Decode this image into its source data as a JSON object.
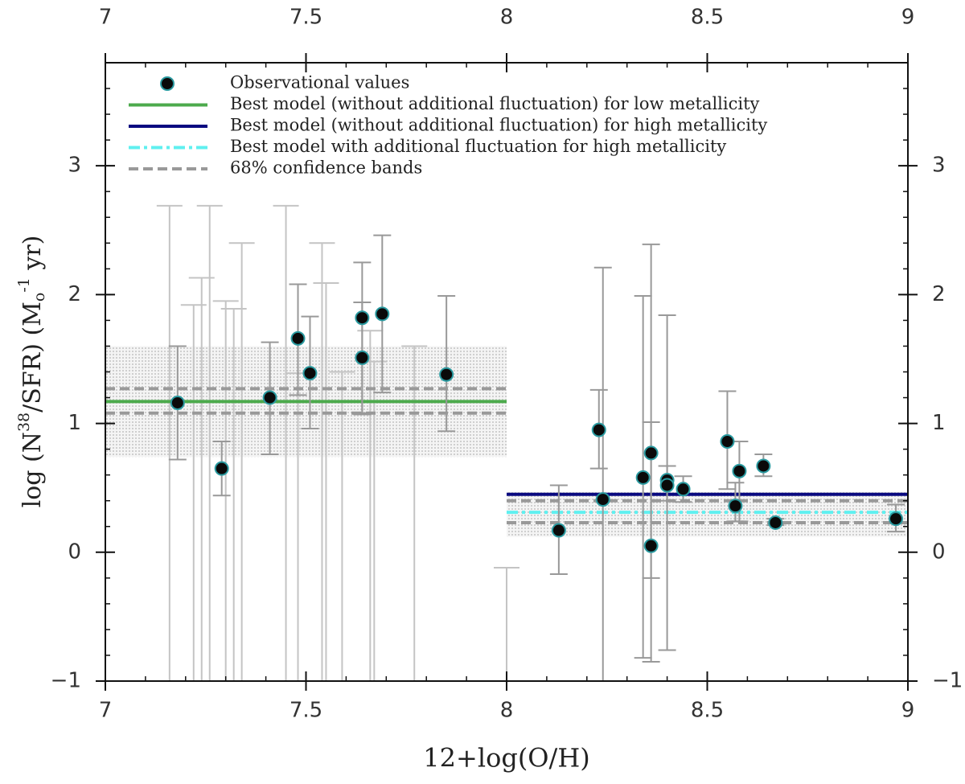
{
  "chart_data": {
    "type": "scatter",
    "x_label": "12+log(O/H)",
    "y_label": [
      "log (N",
      "38",
      "/SFR) (M",
      "o",
      "-1",
      " yr)"
    ],
    "xlim": [
      7,
      9
    ],
    "ylim": [
      -1,
      3.8
    ],
    "xticks": [
      7,
      7.5,
      8,
      8.5,
      9
    ],
    "yticks": [
      {
        "value": -1,
        "label": "−1"
      },
      0,
      1,
      2,
      3
    ],
    "series": [
      {
        "name": "Observational values",
        "color": "#0a0a0a",
        "edge_color": "#2a9aa0",
        "error_color": "#999999",
        "x": [
          7.18,
          7.29,
          7.41,
          7.48,
          7.51,
          7.64,
          7.64,
          7.69,
          7.85,
          8.13,
          8.23,
          8.24,
          8.34,
          8.36,
          8.36,
          8.4,
          8.4,
          8.44,
          8.55,
          8.57,
          8.58,
          8.64,
          8.67,
          8.97
        ],
        "values": [
          1.16,
          0.65,
          1.2,
          1.66,
          1.39,
          1.82,
          1.51,
          1.85,
          1.38,
          0.17,
          0.95,
          0.41,
          0.58,
          0.77,
          0.05,
          0.56,
          0.52,
          0.49,
          0.86,
          0.36,
          0.63,
          0.67,
          0.23,
          0.26
        ],
        "err_lower": [
          0.72,
          0.44,
          0.76,
          1.22,
          0.96,
          1.07,
          1.08,
          1.24,
          0.94,
          -0.17,
          0.65,
          -1.0,
          -0.82,
          -0.85,
          -0.2,
          -0.76,
          0.4,
          0.39,
          0.49,
          0.24,
          0.24,
          0.59,
          0.21,
          0.16
        ],
        "err_upper": [
          1.6,
          0.86,
          1.63,
          2.08,
          1.83,
          2.25,
          1.94,
          2.46,
          1.99,
          0.52,
          1.26,
          2.21,
          1.99,
          2.39,
          1.01,
          1.84,
          0.67,
          0.59,
          1.25,
          0.54,
          0.86,
          0.76,
          0.26,
          0.37
        ]
      },
      {
        "name": "Best model (without additional fluctuation) for low metallicity",
        "color": "#4caa4c",
        "style": "solid",
        "x": [
          7,
          8
        ],
        "values": [
          1.17,
          1.17
        ]
      },
      {
        "name": "Best model (without additional fluctuation) for high metallicity",
        "color": "#0a0a80",
        "style": "solid",
        "x": [
          8,
          9
        ],
        "values": [
          0.45,
          0.45
        ]
      },
      {
        "name": "Best model with additional fluctuation for high metallicity",
        "color": "#5ff0f0",
        "style": "dashdot",
        "x": [
          8,
          9
        ],
        "values": [
          0.31,
          0.31
        ]
      },
      {
        "name": "68% confidence bands",
        "color": "#999999",
        "style": "dashed"
      }
    ],
    "confidence_lines": [
      {
        "x": [
          7,
          8
        ],
        "values": [
          1.27,
          1.27
        ]
      },
      {
        "x": [
          7,
          8
        ],
        "values": [
          1.08,
          1.08
        ]
      },
      {
        "x": [
          8,
          9
        ],
        "values": [
          0.4,
          0.4
        ]
      },
      {
        "x": [
          8,
          9
        ],
        "values": [
          0.23,
          0.23
        ]
      }
    ],
    "bands": [
      {
        "x": [
          7,
          8
        ],
        "lower": 0.74,
        "upper": 1.6
      },
      {
        "x": [
          8,
          9
        ],
        "lower": 0.12,
        "upper": 0.47
      }
    ],
    "upper_limits": {
      "color": "#c4c4c4",
      "x": [
        7.16,
        7.22,
        7.24,
        7.26,
        7.3,
        7.32,
        7.34,
        7.45,
        7.48,
        7.54,
        7.55,
        7.59,
        7.66,
        7.67,
        7.77,
        8.0
      ],
      "values": [
        2.69,
        1.92,
        2.13,
        2.69,
        1.95,
        1.89,
        2.4,
        2.69,
        1.39,
        2.4,
        2.09,
        1.4,
        1.72,
        1.48,
        1.6,
        -0.12
      ]
    }
  }
}
